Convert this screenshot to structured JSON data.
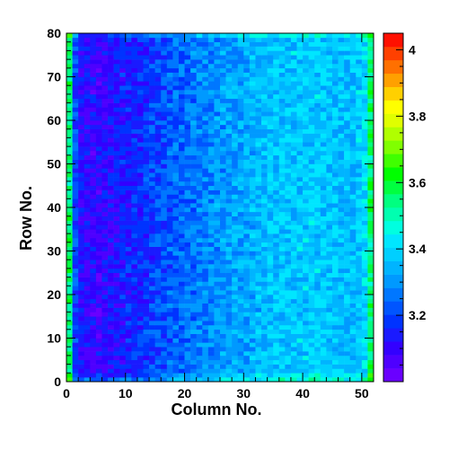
{
  "chart_data": {
    "type": "heatmap",
    "title": "",
    "xlabel": "Column No.",
    "ylabel": "Row No.",
    "xlim": [
      0,
      52
    ],
    "ylim": [
      0,
      80
    ],
    "x_bins": 52,
    "y_bins": 80,
    "x_ticks": [
      0,
      10,
      20,
      30,
      40,
      50
    ],
    "y_ticks": [
      0,
      10,
      20,
      30,
      40,
      50,
      60,
      70,
      80
    ],
    "z_min": 3.0,
    "z_max": 4.05,
    "colorbar_ticks": [
      3.2,
      3.4,
      3.6,
      3.8,
      4.0
    ],
    "colorbar_tick_labels": [
      "3.2",
      "3.4",
      "3.6",
      "3.8",
      "4"
    ],
    "colorbar_colors": [
      "#6a00ff",
      "#4e00ff",
      "#3300ff",
      "#1a1aff",
      "#0033ff",
      "#0055ff",
      "#0077ff",
      "#0099ff",
      "#00b4ff",
      "#00cfff",
      "#00e6ff",
      "#00ffe0",
      "#00ffb0",
      "#00ff80",
      "#00ff40",
      "#00ff00",
      "#40ff00",
      "#80ff00",
      "#b0ff00",
      "#e0ff00",
      "#ffff00",
      "#ffd000",
      "#ffa000",
      "#ff7000",
      "#ff4000",
      "#ff1000"
    ],
    "column_profile": {
      "columns": [
        0,
        1,
        2,
        5,
        10,
        15,
        20,
        25,
        30,
        35,
        40,
        45,
        48,
        50,
        51
      ],
      "typical_value": [
        3.55,
        3.2,
        3.12,
        3.1,
        3.15,
        3.2,
        3.25,
        3.3,
        3.33,
        3.37,
        3.38,
        3.37,
        3.35,
        3.4,
        3.55
      ]
    },
    "row_profile": {
      "rows": [
        0,
        1,
        2,
        78,
        79
      ],
      "typical_value_offset": [
        0.1,
        0.05,
        0.0,
        0.0,
        0.08
      ]
    },
    "noise_amplitude": 0.07
  }
}
